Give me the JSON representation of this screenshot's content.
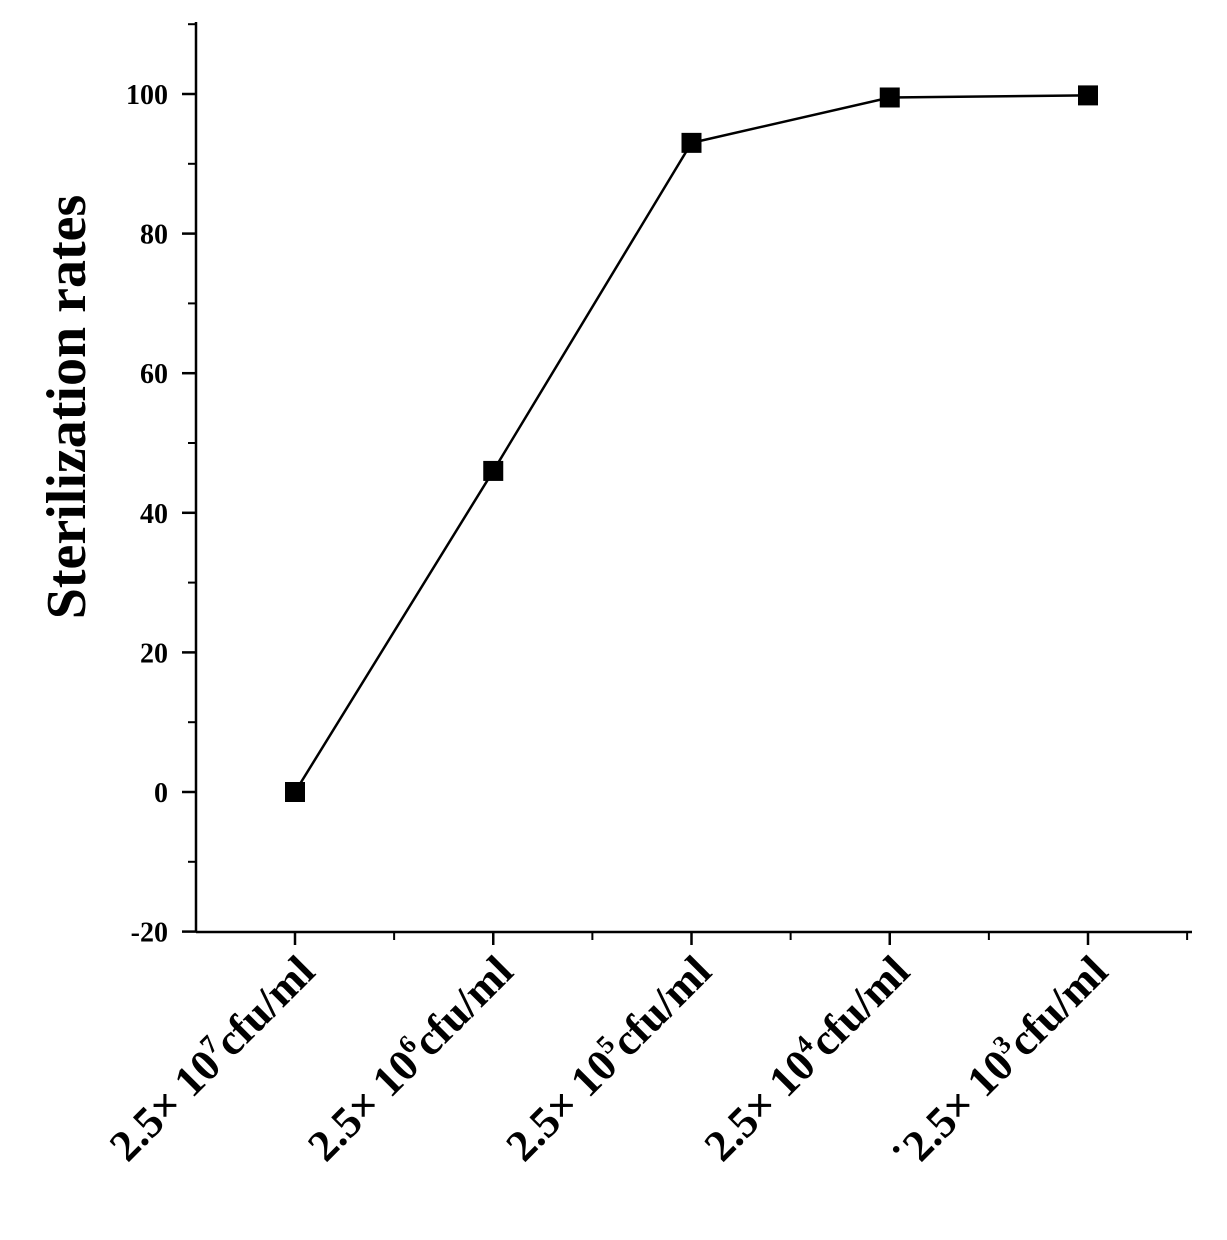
{
  "chart_data": {
    "type": "line",
    "title": "",
    "xlabel": "",
    "ylabel": "Sterilization rates",
    "ylim": [
      -20,
      110
    ],
    "yticks": [
      -20,
      0,
      20,
      40,
      60,
      80,
      100
    ],
    "grid": false,
    "legend": "none",
    "marker": "square",
    "line_color": "#000000",
    "categories": [
      {
        "prefix": "2.5× 10",
        "exponent": "7",
        "unit": "cfu/ml"
      },
      {
        "prefix": "2.5× 10",
        "exponent": "6",
        "unit": "cfu/ml"
      },
      {
        "prefix": "2.5× 10",
        "exponent": "5",
        "unit": "cfu/ml"
      },
      {
        "prefix": "2.5× 10",
        "exponent": "4",
        "unit": "cfu/ml"
      },
      {
        "prefix": "˙2.5× 10",
        "exponent": "3",
        "unit": "cfu/ml"
      }
    ],
    "series": [
      {
        "values": [
          0,
          46,
          93,
          99.5,
          99.8
        ]
      }
    ]
  }
}
